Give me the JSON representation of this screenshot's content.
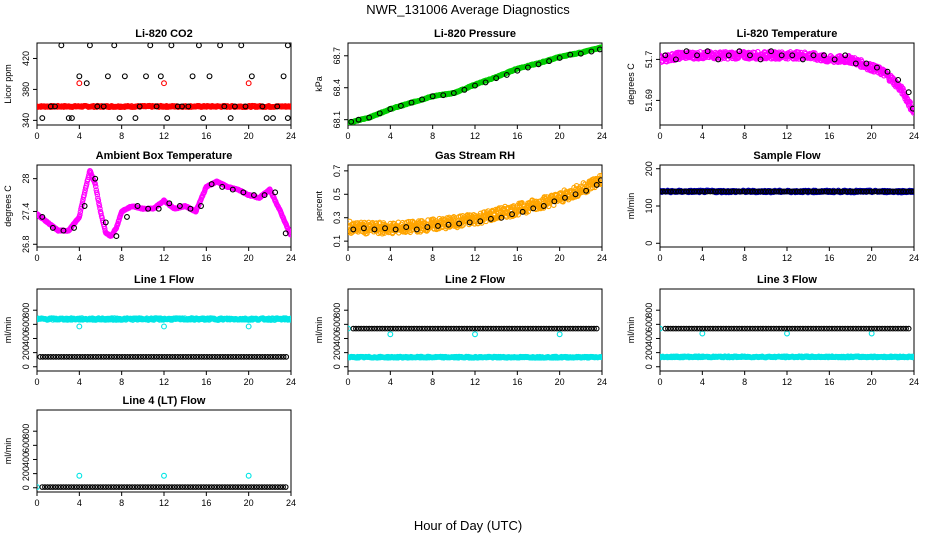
{
  "page": {
    "title": "NWR_131006  Average Diagnostics",
    "x_caption": "Hour of Day (UTC)"
  },
  "colors": {
    "black": "#000000",
    "red": "#ff0000",
    "green": "#00cc00",
    "magenta": "#ff00ff",
    "orange": "#ffa500",
    "blue": "#0000cc",
    "cyan": "#00e5e5"
  },
  "chart_data": [
    {
      "id": "li820-co2",
      "type": "scatter",
      "title": "Li-820 CO2",
      "ylabel": "Licor ppm",
      "xlim": [
        0,
        24
      ],
      "ylim": [
        334,
        440
      ],
      "xticks": [
        0,
        4,
        8,
        12,
        16,
        20,
        24
      ],
      "yticks": [
        340,
        380,
        420
      ],
      "series": [
        {
          "color": "red",
          "kind": "band",
          "x": [
            0,
            24
          ],
          "y": [
            357,
            359
          ]
        },
        {
          "color": "red",
          "x": [
            4,
            12,
            20
          ],
          "y": [
            388,
            388,
            388
          ]
        },
        {
          "color": "black",
          "x": [
            0.5,
            1.7,
            2.3,
            3.3,
            4.0,
            4.7,
            5.0,
            6.3,
            7.3,
            7.8,
            8.3,
            9.3,
            10.7,
            11.3,
            11.7,
            12.3,
            12.7,
            13.3,
            14.3,
            15.3,
            15.7,
            16.3,
            17.3,
            18.7,
            19.3,
            19.7,
            20.3,
            21.3,
            22.3,
            23.3,
            23.7
          ],
          "y": [
            343,
            358,
            437,
            343,
            397,
            388,
            437,
            358,
            437,
            343,
            397,
            343,
            437,
            358,
            397,
            343,
            437,
            358,
            358,
            437,
            343,
            397,
            437,
            358,
            437,
            358,
            397,
            358,
            343,
            397,
            437
          ]
        },
        {
          "color": "black",
          "x": [
            1.3,
            3.0,
            5.7,
            6.7,
            9.7,
            10.3,
            13.7,
            14.7,
            17.7,
            18.3,
            21.7,
            22.7,
            23.7
          ],
          "y": [
            358,
            343,
            358,
            397,
            358,
            397,
            358,
            397,
            358,
            343,
            343,
            358,
            343
          ]
        }
      ]
    },
    {
      "id": "li820-pressure",
      "type": "scatter",
      "title": "Li-820 Pressure",
      "ylabel": "kPa",
      "xlim": [
        0,
        24
      ],
      "ylim": [
        68.05,
        68.82
      ],
      "xticks": [
        0,
        4,
        8,
        12,
        16,
        20,
        24
      ],
      "yticks": [
        68.1,
        68.4,
        68.7
      ],
      "series": [
        {
          "color": "green",
          "kind": "trend",
          "x": [
            0,
            2,
            4,
            6,
            8,
            10,
            12,
            14,
            16,
            18,
            20,
            22,
            24
          ],
          "y": [
            68.07,
            68.12,
            68.2,
            68.26,
            68.32,
            68.35,
            68.43,
            68.5,
            68.58,
            68.63,
            68.69,
            68.73,
            68.78
          ]
        },
        {
          "color": "black",
          "x": [
            0.3,
            1.0,
            2.0,
            3.0,
            4.0,
            5.0,
            6.0,
            7.0,
            8.0,
            9.0,
            10.0,
            11.0,
            12.0,
            13.0,
            14.0,
            15.0,
            16.0,
            17.0,
            18.0,
            19.0,
            20.0,
            21.0,
            22.0,
            23.0,
            23.8
          ],
          "y": [
            68.08,
            68.1,
            68.12,
            68.16,
            68.2,
            68.23,
            68.26,
            68.29,
            68.32,
            68.33,
            68.35,
            68.38,
            68.42,
            68.45,
            68.49,
            68.52,
            68.56,
            68.59,
            68.62,
            68.65,
            68.68,
            68.71,
            68.72,
            68.74,
            68.76
          ]
        }
      ]
    },
    {
      "id": "li820-temperature",
      "type": "scatter",
      "title": "Li-820 Temperature",
      "ylabel": "degrees C",
      "xlim": [
        0,
        24
      ],
      "ylim": [
        51.684,
        51.704
      ],
      "xticks": [
        0,
        4,
        8,
        12,
        16,
        20,
        24
      ],
      "yticks": [
        51.69,
        51.7
      ],
      "series": [
        {
          "color": "magenta",
          "kind": "noisy",
          "x": [
            0,
            2,
            4,
            6,
            8,
            10,
            12,
            14,
            16,
            18,
            19,
            20,
            21,
            22,
            23,
            24
          ],
          "y": [
            51.7,
            51.701,
            51.701,
            51.701,
            51.701,
            51.701,
            51.701,
            51.701,
            51.7,
            51.7,
            51.699,
            51.698,
            51.697,
            51.695,
            51.692,
            51.687
          ],
          "spread": 0.0018
        },
        {
          "color": "black",
          "x": [
            0.5,
            1.5,
            2.5,
            3.5,
            4.5,
            5.5,
            6.5,
            7.5,
            8.5,
            9.5,
            10.5,
            11.5,
            12.5,
            13.5,
            14.5,
            15.5,
            16.5,
            17.5,
            18.5,
            19.5,
            20.5,
            21.5,
            22.5,
            23.5,
            23.9
          ],
          "y": [
            51.701,
            51.7,
            51.702,
            51.701,
            51.702,
            51.7,
            51.701,
            51.702,
            51.701,
            51.7,
            51.702,
            51.701,
            51.701,
            51.7,
            51.701,
            51.701,
            51.7,
            51.701,
            51.699,
            51.699,
            51.698,
            51.697,
            51.695,
            51.692,
            51.688
          ]
        }
      ]
    },
    {
      "id": "ambient-box-temperature",
      "type": "scatter",
      "title": "Ambient Box Temperature",
      "ylabel": "degrees C",
      "xlim": [
        0,
        24
      ],
      "ylim": [
        26.75,
        28.25
      ],
      "xticks": [
        0,
        4,
        8,
        12,
        16,
        20,
        24
      ],
      "yticks": [
        26.8,
        27.4,
        28.0
      ],
      "series": [
        {
          "color": "magenta",
          "kind": "trend",
          "x": [
            0,
            1,
            2,
            3,
            4,
            4.5,
            5,
            5.5,
            6,
            6.5,
            7,
            7.5,
            8,
            9,
            10,
            11,
            12,
            13,
            14,
            15,
            16,
            17,
            18,
            19,
            20,
            21,
            22,
            23,
            24
          ],
          "y": [
            27.35,
            27.2,
            27.05,
            27.05,
            27.3,
            27.75,
            28.15,
            27.9,
            27.4,
            27.0,
            26.95,
            27.1,
            27.4,
            27.5,
            27.45,
            27.45,
            27.6,
            27.45,
            27.5,
            27.4,
            27.85,
            27.95,
            27.85,
            27.8,
            27.7,
            27.65,
            27.8,
            27.4,
            26.95
          ]
        },
        {
          "color": "black",
          "x": [
            0.5,
            1.5,
            2.5,
            3.5,
            4.5,
            5.5,
            6.5,
            7.5,
            8.5,
            9.5,
            10.5,
            11.5,
            12.5,
            13.5,
            14.5,
            15.5,
            16.5,
            17.5,
            18.5,
            19.5,
            20.5,
            21.5,
            22.5,
            23.5
          ],
          "y": [
            27.3,
            27.1,
            27.05,
            27.1,
            27.5,
            28.0,
            27.2,
            26.95,
            27.3,
            27.5,
            27.45,
            27.45,
            27.55,
            27.5,
            27.45,
            27.5,
            27.9,
            27.85,
            27.8,
            27.75,
            27.7,
            27.7,
            27.75,
            27.0
          ]
        }
      ]
    },
    {
      "id": "gas-stream-rh",
      "type": "scatter",
      "title": "Gas Stream RH",
      "ylabel": "percent",
      "xlim": [
        0,
        24
      ],
      "ylim": [
        0.05,
        0.75
      ],
      "xticks": [
        0,
        4,
        8,
        12,
        16,
        20,
        24
      ],
      "yticks": [
        0.1,
        0.3,
        0.5,
        0.7
      ],
      "series": [
        {
          "color": "orange",
          "kind": "noisy",
          "x": [
            0,
            2,
            4,
            6,
            8,
            10,
            12,
            14,
            16,
            18,
            20,
            22,
            24
          ],
          "y": [
            0.22,
            0.21,
            0.21,
            0.22,
            0.24,
            0.26,
            0.29,
            0.33,
            0.37,
            0.42,
            0.47,
            0.54,
            0.63
          ],
          "spread": 0.1
        },
        {
          "color": "black",
          "x": [
            0.5,
            1.5,
            2.5,
            3.5,
            4.5,
            5.5,
            6.5,
            7.5,
            8.5,
            9.5,
            10.5,
            11.5,
            12.5,
            13.5,
            14.5,
            15.5,
            16.5,
            17.5,
            18.5,
            19.5,
            20.5,
            21.5,
            22.5,
            23.5,
            23.9
          ],
          "y": [
            0.2,
            0.21,
            0.2,
            0.21,
            0.2,
            0.22,
            0.2,
            0.22,
            0.23,
            0.24,
            0.25,
            0.26,
            0.27,
            0.29,
            0.3,
            0.33,
            0.35,
            0.38,
            0.4,
            0.44,
            0.47,
            0.5,
            0.53,
            0.58,
            0.62
          ]
        }
      ]
    },
    {
      "id": "sample-flow",
      "type": "scatter",
      "title": "Sample Flow",
      "ylabel": "ml/min",
      "xlim": [
        0,
        24
      ],
      "ylim": [
        -10,
        210
      ],
      "xticks": [
        0,
        4,
        8,
        12,
        16,
        20,
        24
      ],
      "yticks": [
        0,
        100,
        200
      ],
      "series": [
        {
          "color": "blue",
          "kind": "band",
          "x": [
            0,
            24
          ],
          "y": [
            136,
            142
          ]
        },
        {
          "color": "black",
          "kind": "dense",
          "x": [
            0,
            24
          ],
          "y": [
            139,
            139
          ]
        }
      ]
    },
    {
      "id": "line-1-flow",
      "type": "scatter",
      "title": "Line 1 Flow",
      "ylabel": "ml/min",
      "xlim": [
        0,
        24
      ],
      "ylim": [
        -60,
        1100
      ],
      "xticks": [
        0,
        4,
        8,
        12,
        16,
        20,
        24
      ],
      "yticks": [
        0,
        200,
        400,
        600,
        800
      ],
      "series": [
        {
          "color": "cyan",
          "kind": "band",
          "x": [
            0,
            24
          ],
          "y": [
            660,
            690
          ]
        },
        {
          "color": "cyan",
          "x": [
            4,
            12,
            20
          ],
          "y": [
            570,
            570,
            570
          ]
        },
        {
          "color": "black",
          "kind": "dense",
          "x": [
            0.3,
            23.7
          ],
          "y": [
            140,
            140
          ]
        }
      ]
    },
    {
      "id": "line-2-flow",
      "type": "scatter",
      "title": "Line 2 Flow",
      "ylabel": "ml/min",
      "xlim": [
        0,
        24
      ],
      "ylim": [
        -60,
        1100
      ],
      "xticks": [
        0,
        4,
        8,
        12,
        16,
        20,
        24
      ],
      "yticks": [
        0,
        200,
        400,
        600,
        800
      ],
      "series": [
        {
          "color": "cyan",
          "kind": "band",
          "x": [
            0,
            24
          ],
          "y": [
            125,
            145
          ]
        },
        {
          "color": "cyan",
          "x": [
            0,
            4,
            12,
            20
          ],
          "y": [
            540,
            460,
            460,
            460
          ]
        },
        {
          "color": "black",
          "kind": "dense",
          "x": [
            0.5,
            23.7
          ],
          "y": [
            540,
            540
          ]
        }
      ]
    },
    {
      "id": "line-3-flow",
      "type": "scatter",
      "title": "Line 3 Flow",
      "ylabel": "ml/min",
      "xlim": [
        0,
        24
      ],
      "ylim": [
        -60,
        1100
      ],
      "xticks": [
        0,
        4,
        8,
        12,
        16,
        20,
        24
      ],
      "yticks": [
        0,
        200,
        400,
        600,
        800
      ],
      "series": [
        {
          "color": "cyan",
          "kind": "band",
          "x": [
            0,
            24
          ],
          "y": [
            130,
            150
          ]
        },
        {
          "color": "cyan",
          "x": [
            0,
            4,
            12,
            20
          ],
          "y": [
            540,
            470,
            470,
            470
          ]
        },
        {
          "color": "black",
          "kind": "dense",
          "x": [
            0.5,
            23.7
          ],
          "y": [
            540,
            540
          ]
        }
      ]
    },
    {
      "id": "line-4-lt-flow",
      "type": "scatter",
      "title": "Line 4 (LT) Flow",
      "ylabel": "ml/min",
      "xlim": [
        0,
        24
      ],
      "ylim": [
        -60,
        1100
      ],
      "xticks": [
        0,
        4,
        8,
        12,
        16,
        20,
        24
      ],
      "yticks": [
        0,
        200,
        400,
        600,
        800
      ],
      "series": [
        {
          "color": "cyan",
          "x": [
            0,
            4,
            12,
            20
          ],
          "y": [
            10,
            170,
            170,
            170
          ]
        },
        {
          "color": "black",
          "kind": "dense",
          "x": [
            0.5,
            23.7
          ],
          "y": [
            10,
            10
          ]
        }
      ]
    }
  ]
}
